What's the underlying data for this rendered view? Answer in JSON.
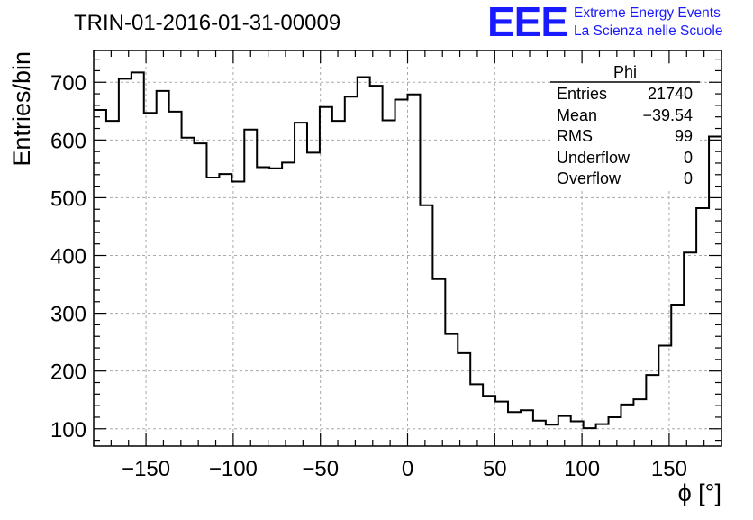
{
  "chart_data": {
    "type": "histogram",
    "title": "TRIN-01-2016-01-31-00009",
    "xlabel": "ϕ [°]",
    "ylabel": "Entries/bin",
    "xlim": [
      -180,
      180
    ],
    "ylim": [
      70,
      755
    ],
    "bin_width": 7.2,
    "x_ticks": [
      -150,
      -100,
      -50,
      0,
      50,
      100,
      150
    ],
    "x_tick_labels": [
      "−150",
      "−100",
      "−50",
      "0",
      "50",
      "100",
      "150"
    ],
    "y_ticks": [
      100,
      200,
      300,
      400,
      500,
      600,
      700
    ],
    "y_tick_labels": [
      "100",
      "200",
      "300",
      "400",
      "500",
      "600",
      "700"
    ],
    "grid": true,
    "values": [
      652,
      633,
      706,
      717,
      647,
      685,
      649,
      604,
      594,
      535,
      541,
      528,
      618,
      553,
      551,
      561,
      630,
      578,
      657,
      633,
      675,
      709,
      694,
      634,
      670,
      679,
      487,
      359,
      264,
      231,
      177,
      157,
      147,
      129,
      132,
      114,
      107,
      122,
      113,
      101,
      108,
      120,
      142,
      151,
      193,
      244,
      315,
      405,
      482,
      606
    ],
    "stats_box": {
      "title": "Phi",
      "rows": [
        {
          "label": "Entries",
          "value": "21740"
        },
        {
          "label": "Mean",
          "value": "−39.54"
        },
        {
          "label": "RMS",
          "value": "99"
        },
        {
          "label": "Underflow",
          "value": "0"
        },
        {
          "label": "Overflow",
          "value": "0"
        }
      ]
    }
  },
  "logo": {
    "mark": "EEE",
    "line1": "Extreme Energy Events",
    "line2": "La Scienza nelle Scuole",
    "color": "#1a1aff"
  },
  "colors": {
    "line": "#000000",
    "grid": "#a8a8a8",
    "logo": "#1a1aff"
  }
}
